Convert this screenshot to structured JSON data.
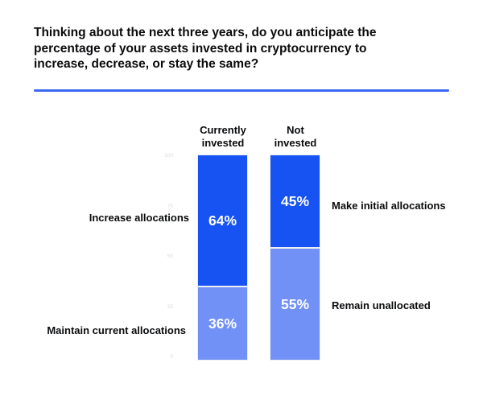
{
  "header": {
    "title_lines": [
      "Thinking about the next three years, do you anticipate the",
      "percentage of your assets invested in cryptocurrency to",
      "increase, decrease, or stay the same?"
    ]
  },
  "colors": {
    "divider_blue": "#3b68f0",
    "primary_blue": "#1752f2",
    "light_blue": "#7191f7",
    "text_black": "#0a0b0d",
    "tick_gray": "#d9dbdf"
  },
  "chart_data": {
    "type": "bar",
    "subtype": "100-percent-stacked-columns",
    "title": "Thinking about the next three years, do you anticipate the percentage of your assets invested in cryptocurrency to increase, decrease, or stay the same?",
    "categories": [
      "Currently invested",
      "Not invested"
    ],
    "ylim": [
      0,
      100
    ],
    "grid": false,
    "legend": "none",
    "axis_ticks": [
      "100",
      "75",
      "50",
      "25",
      "0"
    ],
    "columns": [
      {
        "header_lines": [
          "Currently",
          "invested"
        ],
        "segments": [
          {
            "label": "Increase allocations",
            "label_side": "left",
            "value": 64,
            "value_text": "64%",
            "color": "#1752f2"
          },
          {
            "label": "Maintain current allocations",
            "label_side": "left",
            "value": 36,
            "value_text": "36%",
            "color": "#7191f7"
          }
        ]
      },
      {
        "header_lines": [
          "Not",
          "invested"
        ],
        "segments": [
          {
            "label": "Make initial allocations",
            "label_side": "right",
            "value": 45,
            "value_text": "45%",
            "color": "#1752f2"
          },
          {
            "label": "Remain unallocated",
            "label_side": "right",
            "value": 55,
            "value_text": "55%",
            "color": "#7191f7"
          }
        ]
      }
    ]
  }
}
